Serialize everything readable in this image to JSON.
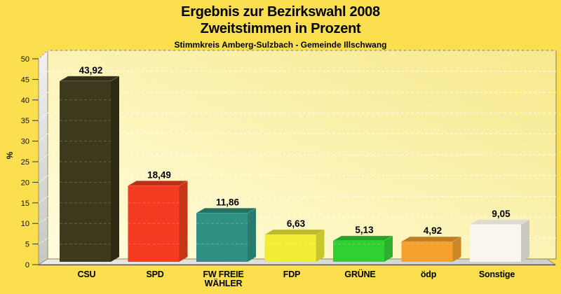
{
  "page": {
    "background_color": "#FBDF4E",
    "title_line1": "Ergebnis zur Bezirkswahl 2008",
    "title_line2": "Zweitstimmen in Prozent",
    "subtitle": "Stimmkreis Amberg-Sulzbach - Gemeinde Illschwang",
    "text_color": "#000000"
  },
  "chart_data": {
    "type": "bar",
    "title": "Ergebnis zur Bezirkswahl 2008 — Zweitstimmen in Prozent",
    "subtitle": "Stimmkreis Amberg-Sulzbach - Gemeinde Illschwang",
    "xlabel": "",
    "ylabel": "%",
    "ylim": [
      0,
      50
    ],
    "ytick_step": 5,
    "grid": "horizontal-dashed-white",
    "style": "3d-bars",
    "legend": "none",
    "categories": [
      "CSU",
      "SPD",
      "FW FREIE WÄHLER",
      "FDP",
      "GRÜNE",
      "ödp",
      "Sonstige"
    ],
    "category_display": [
      "CSU",
      "SPD",
      "FW FREIE\nWÄHLER",
      "FDP",
      "GRÜNE",
      "ödp",
      "Sonstige"
    ],
    "values": [
      43.92,
      18.49,
      11.86,
      6.63,
      5.13,
      4.92,
      9.05
    ],
    "value_labels": [
      "43,92",
      "18,49",
      "11,86",
      "6,63",
      "5,13",
      "4,92",
      "9,05"
    ],
    "bar_colors": {
      "front": [
        "#3E3A1E",
        "#F43A20",
        "#2F9184",
        "#F2EE35",
        "#30D033",
        "#F5A02E",
        "#F8F6EE"
      ],
      "top": [
        "#34301A",
        "#BE2F16",
        "#23705F",
        "#BDB929",
        "#26A528",
        "#BF7D20",
        "#DEDCD2"
      ],
      "side": [
        "#2D2A14",
        "#C83418",
        "#297C6D",
        "#C9C52C",
        "#2BB12E",
        "#CB8626",
        "#CBC9BF"
      ]
    },
    "styles": {
      "wall_gradient_start": "#FFFDDE",
      "wall_gradient_end": "#F7E98C",
      "left_wall_gradient_start": "#F1F1EF",
      "left_wall_gradient_end": "#C7C7C3",
      "floor_gradient_start": "#EAEAE6",
      "floor_gradient_end": "#CFCFC9",
      "gridline_color": "#FFFFFF",
      "outline_color": "#9C9268",
      "axis_line_color": "#55503C",
      "axis_text_color": "#111111"
    }
  }
}
